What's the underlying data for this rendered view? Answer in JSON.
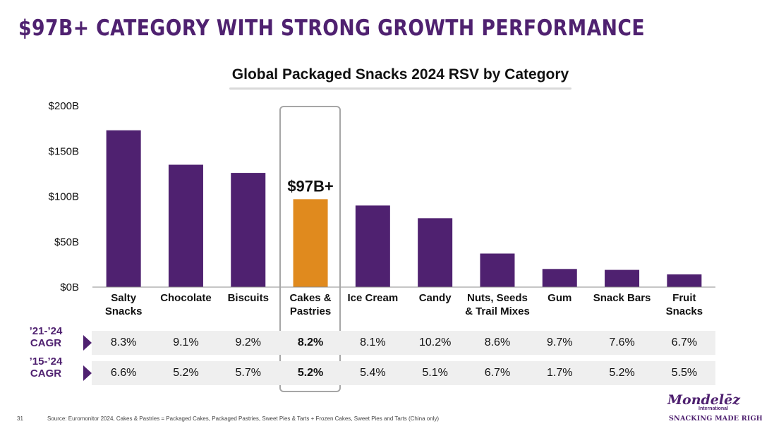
{
  "headline": "$97B+ CATEGORY WITH STRONG GROWTH PERFORMANCE",
  "chart_data": {
    "type": "bar",
    "title": "Global Packaged Snacks 2024 RSV by Category",
    "categories": [
      "Salty Snacks",
      "Chocolate",
      "Biscuits",
      "Cakes & Pastries",
      "Ice Cream",
      "Candy",
      "Nuts, Seeds & Trail Mixes",
      "Gum",
      "Snack Bars",
      "Fruit Snacks"
    ],
    "category_lines": [
      [
        "Salty",
        "Snacks"
      ],
      [
        "Chocolate"
      ],
      [
        "Biscuits"
      ],
      [
        "Cakes &",
        "Pastries"
      ],
      [
        "Ice Cream"
      ],
      [
        "Candy"
      ],
      [
        "Nuts, Seeds",
        "& Trail Mixes"
      ],
      [
        "Gum"
      ],
      [
        "Snack Bars"
      ],
      [
        "Fruit",
        "Snacks"
      ]
    ],
    "values": [
      173,
      135,
      126,
      97,
      90,
      76,
      37,
      20,
      19,
      14
    ],
    "unit": "$B",
    "ylim": [
      0,
      200
    ],
    "yticks": [
      0,
      50,
      100,
      150,
      200
    ],
    "ytick_labels": [
      "$0B",
      "$50B",
      "$100B",
      "$150B",
      "$200B"
    ],
    "grid": false,
    "highlight_index": 3,
    "highlight_label": "$97B+",
    "colors": {
      "bar": "#4f2170",
      "highlight": "#e08a1e"
    }
  },
  "cagr_rows": [
    {
      "label": [
        "'21-'24",
        "CAGR"
      ],
      "values": [
        "8.3%",
        "9.1%",
        "9.2%",
        "8.2%",
        "8.1%",
        "10.2%",
        "8.6%",
        "9.7%",
        "7.6%",
        "6.7%"
      ]
    },
    {
      "label": [
        "'15-'24",
        "CAGR"
      ],
      "values": [
        "6.6%",
        "5.2%",
        "5.7%",
        "5.2%",
        "5.4%",
        "5.1%",
        "6.7%",
        "1.7%",
        "5.2%",
        "5.5%"
      ]
    }
  ],
  "footer": {
    "page_number": "31",
    "source": "Source: Euromonitor 2024, Cakes & Pastries = Packaged Cakes, Packaged Pastries, Sweet Pies & Tarts + Frozen Cakes, Sweet Pies and Tarts (China only)",
    "logo_text": "Mondelēz",
    "logo_sub": "International",
    "tagline": "SNACKING MADE RIGHT"
  },
  "colors": {
    "brand": "#4f2170",
    "accent": "#e08a1e",
    "row_bg": "#efefef"
  }
}
